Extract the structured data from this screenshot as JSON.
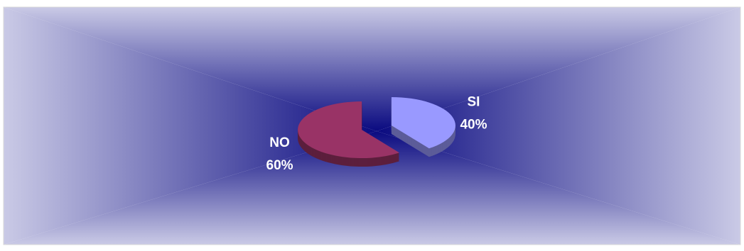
{
  "chart_data": {
    "type": "pie",
    "categories": [
      "SI",
      "NO"
    ],
    "values": [
      40,
      60
    ],
    "value_labels": [
      "40%",
      "60%"
    ],
    "colors": [
      "#9999ff",
      "#993366"
    ],
    "exploded": true,
    "three_d": true
  }
}
